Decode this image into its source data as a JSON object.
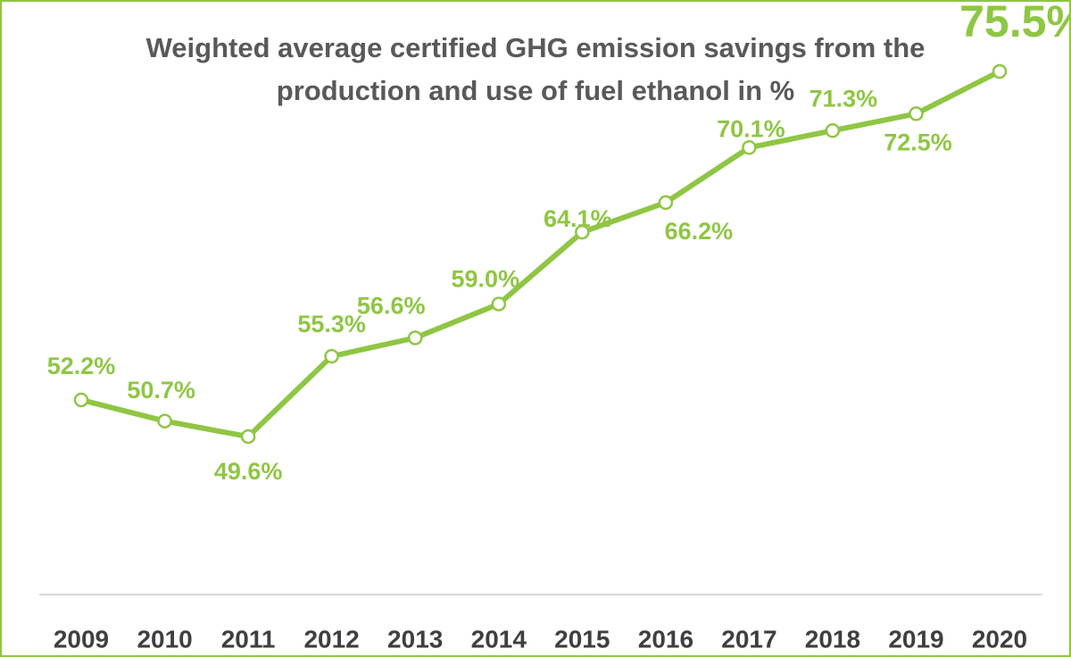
{
  "chart_data": {
    "type": "line",
    "title_line1": "Weighted average certified GHG emission savings from the",
    "title_line2": "production and use of fuel ethanol in %",
    "xlabel": "",
    "ylabel": "",
    "categories": [
      "2009",
      "2010",
      "2011",
      "2012",
      "2013",
      "2014",
      "2015",
      "2016",
      "2017",
      "2018",
      "2019",
      "2020"
    ],
    "series": [
      {
        "values": [
          52.2,
          50.7,
          49.6,
          55.3,
          56.6,
          59.0,
          64.1,
          66.2,
          70.1,
          71.3,
          72.5,
          75.5
        ],
        "labels": [
          "52.2%",
          "50.7%",
          "49.6%",
          "55.3%",
          "56.6%",
          "59.0%",
          "64.1%",
          "66.2%",
          "70.1%",
          "71.3%",
          "72.5%",
          "75.5%"
        ]
      }
    ],
    "ylim": [
      38.4,
      77.4
    ],
    "grid": false,
    "legend": "none",
    "line_color": "#8fc644",
    "label_color": "#8fc644",
    "title_color": "#595959",
    "axis_label_color": "#3f3f3f",
    "emphasized_point": "2020"
  }
}
